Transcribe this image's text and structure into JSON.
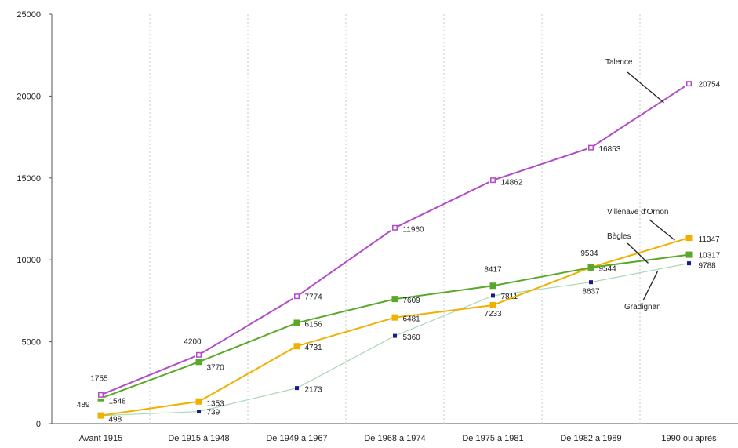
{
  "chart_data": {
    "type": "line",
    "categories": [
      "Avant 1915",
      "De 1915 à 1948",
      "De 1949 à 1967",
      "De 1968 à 1974",
      "De 1975 à 1981",
      "De 1982 à 1989",
      "1990 ou après"
    ],
    "yticks": [
      "0",
      "5000",
      "10000",
      "15000",
      "20000",
      "25000"
    ],
    "ylim": [
      0,
      25000
    ],
    "grid": {
      "vertical": true,
      "horizontal": false
    },
    "legend": "none",
    "series": [
      {
        "name": "Talence",
        "color": "#b04cc8",
        "values": [
          1755,
          4200,
          7774,
          11960,
          14862,
          16853,
          20754
        ],
        "labels": [
          "1755",
          "4200",
          "7774",
          "11960",
          "14862",
          "16853",
          "20754"
        ]
      },
      {
        "name": "Bègles",
        "color": "#5aa82a",
        "values": [
          1548,
          3770,
          6156,
          7609,
          8417,
          9534,
          10317
        ],
        "labels": [
          "1548",
          "3770",
          "6156",
          "7609",
          "8417",
          "9534",
          "10317"
        ]
      },
      {
        "name": "Villenave d'Ornon",
        "color": "#f0b000",
        "values": [
          498,
          1353,
          4731,
          6481,
          7233,
          9544,
          11347
        ],
        "labels": [
          "498",
          "1353",
          "4731",
          "6481",
          "7233",
          "9544",
          "11347"
        ]
      },
      {
        "name": "Gradignan",
        "color": "#a8d8b8",
        "marker_color": "#1a1a8c",
        "values": [
          489,
          739,
          2173,
          5360,
          7811,
          8637,
          9788
        ],
        "labels": [
          "489",
          "739",
          "2173",
          "5360",
          "7811",
          "8637",
          "9788"
        ]
      }
    ]
  }
}
